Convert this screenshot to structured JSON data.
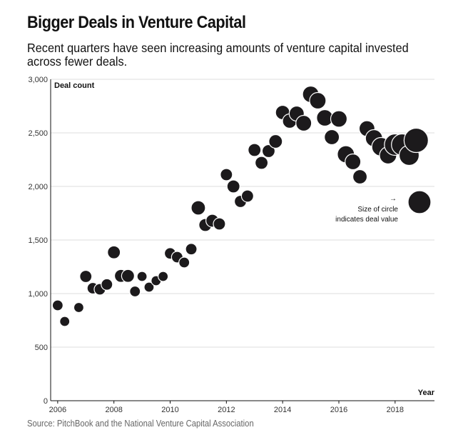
{
  "header": {
    "title": "Bigger Deals in Venture Capital",
    "subtitle": "Recent quarters have seen increasing amounts of venture capital invested across fewer deals."
  },
  "footer": {
    "source": "Source: PitchBook and the National Venture Capital Association"
  },
  "colors": {
    "bubble": "#1c1a1c",
    "grid": "#dcdcdc",
    "axis": "#111111",
    "source_text": "#666666"
  },
  "chart_data": {
    "type": "scatter",
    "title": "Bigger Deals in Venture Capital",
    "subtitle": "Recent quarters have seen increasing amounts of venture capital invested across fewer deals.",
    "xlabel": "Year",
    "ylabel": "Deal count",
    "xlim": [
      2005.75,
      2019.4
    ],
    "ylim": [
      0,
      3000
    ],
    "x_ticks": [
      "2006",
      "2008",
      "2010",
      "2012",
      "2014",
      "2016",
      "2018"
    ],
    "y_ticks": [
      "0",
      "500",
      "1,000",
      "1,500",
      "2,000",
      "2,500",
      "3,000"
    ],
    "y_tick_values": [
      0,
      500,
      1000,
      1500,
      2000,
      2500,
      3000
    ],
    "grid": true,
    "size_encodes": "deal value",
    "legend_note": {
      "arrow": "→",
      "lines": [
        "Size of circle",
        "indicates deal value"
      ],
      "example_size": 16
    },
    "points": [
      {
        "x": 2006.0,
        "y": 890,
        "size": 7.5
      },
      {
        "x": 2006.25,
        "y": 740,
        "size": 7
      },
      {
        "x": 2006.75,
        "y": 870,
        "size": 7
      },
      {
        "x": 2007.0,
        "y": 1160,
        "size": 8.5
      },
      {
        "x": 2007.25,
        "y": 1050,
        "size": 8
      },
      {
        "x": 2007.5,
        "y": 1040,
        "size": 8
      },
      {
        "x": 2007.75,
        "y": 1085,
        "size": 8
      },
      {
        "x": 2008.0,
        "y": 1385,
        "size": 9
      },
      {
        "x": 2008.25,
        "y": 1165,
        "size": 9
      },
      {
        "x": 2008.5,
        "y": 1165,
        "size": 9
      },
      {
        "x": 2008.75,
        "y": 1020,
        "size": 7.5
      },
      {
        "x": 2009.0,
        "y": 1160,
        "size": 7
      },
      {
        "x": 2009.25,
        "y": 1060,
        "size": 7
      },
      {
        "x": 2009.5,
        "y": 1120,
        "size": 7
      },
      {
        "x": 2009.75,
        "y": 1160,
        "size": 7
      },
      {
        "x": 2010.0,
        "y": 1375,
        "size": 8
      },
      {
        "x": 2010.25,
        "y": 1340,
        "size": 8
      },
      {
        "x": 2010.5,
        "y": 1290,
        "size": 7.5
      },
      {
        "x": 2010.75,
        "y": 1415,
        "size": 8
      },
      {
        "x": 2011.0,
        "y": 1800,
        "size": 10
      },
      {
        "x": 2011.25,
        "y": 1640,
        "size": 9
      },
      {
        "x": 2011.5,
        "y": 1680,
        "size": 9
      },
      {
        "x": 2011.75,
        "y": 1650,
        "size": 8.5
      },
      {
        "x": 2012.0,
        "y": 2110,
        "size": 8.5
      },
      {
        "x": 2012.25,
        "y": 2000,
        "size": 9
      },
      {
        "x": 2012.5,
        "y": 1860,
        "size": 8.5
      },
      {
        "x": 2012.75,
        "y": 1910,
        "size": 8.5
      },
      {
        "x": 2013.0,
        "y": 2340,
        "size": 9
      },
      {
        "x": 2013.25,
        "y": 2220,
        "size": 9
      },
      {
        "x": 2013.5,
        "y": 2330,
        "size": 9
      },
      {
        "x": 2013.75,
        "y": 2420,
        "size": 9.5
      },
      {
        "x": 2014.0,
        "y": 2690,
        "size": 10
      },
      {
        "x": 2014.25,
        "y": 2610,
        "size": 10
      },
      {
        "x": 2014.5,
        "y": 2680,
        "size": 10.5
      },
      {
        "x": 2014.75,
        "y": 2590,
        "size": 11
      },
      {
        "x": 2015.0,
        "y": 2860,
        "size": 11.5
      },
      {
        "x": 2015.25,
        "y": 2800,
        "size": 11.5
      },
      {
        "x": 2015.5,
        "y": 2640,
        "size": 11.5
      },
      {
        "x": 2015.75,
        "y": 2460,
        "size": 10.5
      },
      {
        "x": 2016.0,
        "y": 2630,
        "size": 11.5
      },
      {
        "x": 2016.25,
        "y": 2300,
        "size": 12
      },
      {
        "x": 2016.5,
        "y": 2230,
        "size": 11
      },
      {
        "x": 2016.75,
        "y": 2090,
        "size": 10
      },
      {
        "x": 2017.0,
        "y": 2540,
        "size": 11
      },
      {
        "x": 2017.25,
        "y": 2450,
        "size": 12
      },
      {
        "x": 2017.5,
        "y": 2370,
        "size": 13
      },
      {
        "x": 2017.75,
        "y": 2290,
        "size": 12
      },
      {
        "x": 2018.0,
        "y": 2390,
        "size": 15
      },
      {
        "x": 2018.25,
        "y": 2390,
        "size": 15
      },
      {
        "x": 2018.5,
        "y": 2290,
        "size": 14
      },
      {
        "x": 2018.75,
        "y": 2430,
        "size": 17
      }
    ]
  }
}
